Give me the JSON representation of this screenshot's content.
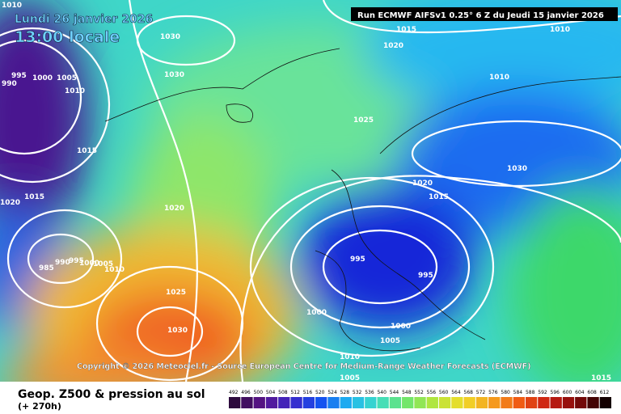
{
  "header": {
    "date": "Lundi 26 janvier 2026",
    "time": "13:00 locale",
    "run": "Run ECMWF AIFSv1 0.25° 6 Z du Jeudi 15 janvier 2026"
  },
  "copyright": "Copyright © 2026 Meteociel.fr - Source European Centre for Medium-Range Weather Forecasts (ECMWF)",
  "isobar_labels": [
    "1010",
    "1030",
    "1015",
    "1010",
    "1020",
    "1030",
    "995",
    "1000",
    "1005",
    "990",
    "1010",
    "1010",
    "1025",
    "1015",
    "1030",
    "1020",
    "1015",
    "1015",
    "1020",
    "1020",
    "995",
    "995",
    "985",
    "990",
    "995",
    "1000",
    "1005",
    "1010",
    "1025",
    "1000",
    "1000",
    "1030",
    "1005",
    "1010",
    "1005",
    "1015"
  ],
  "footer": {
    "title": "Geop. Z500 & pression au sol",
    "lead": "(+ 270h)"
  },
  "legend": {
    "labels": [
      "492",
      "496",
      "500",
      "504",
      "508",
      "512",
      "516",
      "520",
      "524",
      "528",
      "532",
      "536",
      "540",
      "544",
      "548",
      "552",
      "556",
      "560",
      "564",
      "568",
      "572",
      "576",
      "580",
      "584",
      "588",
      "592",
      "596",
      "600",
      "604",
      "608",
      "612"
    ]
  }
}
